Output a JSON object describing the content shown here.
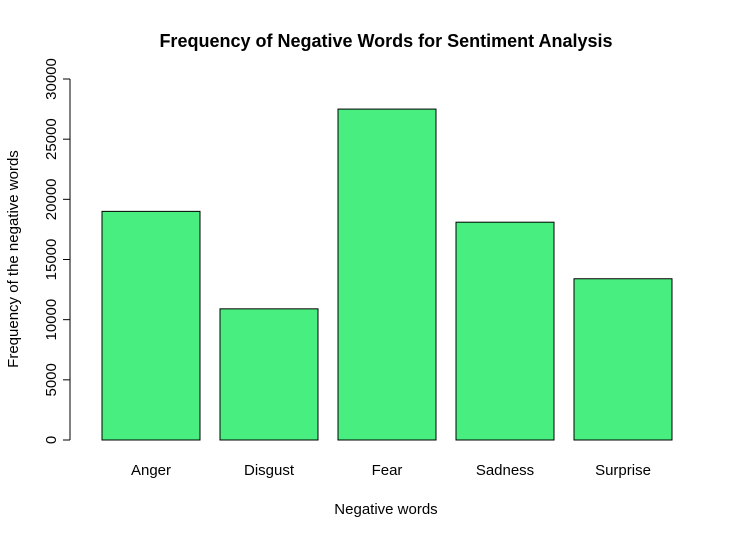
{
  "chart_data": {
    "type": "bar",
    "title": "Frequency of Negative Words for Sentiment Analysis",
    "xlabel": "Negative words",
    "ylabel": "Frequency of the negative words",
    "categories": [
      "Anger",
      "Disgust",
      "Fear",
      "Sadness",
      "Surprise"
    ],
    "values": [
      19000,
      10900,
      27500,
      18100,
      13400
    ],
    "ylim": [
      0,
      30000
    ],
    "yticks": [
      0,
      5000,
      10000,
      15000,
      20000,
      25000,
      30000
    ],
    "ytick_labels": [
      "0",
      "5000",
      "10000",
      "15000",
      "20000",
      "25000",
      "30000"
    ],
    "grid": false,
    "legend": "none",
    "bar_color": "#48EF80",
    "border_color": "#000000"
  }
}
